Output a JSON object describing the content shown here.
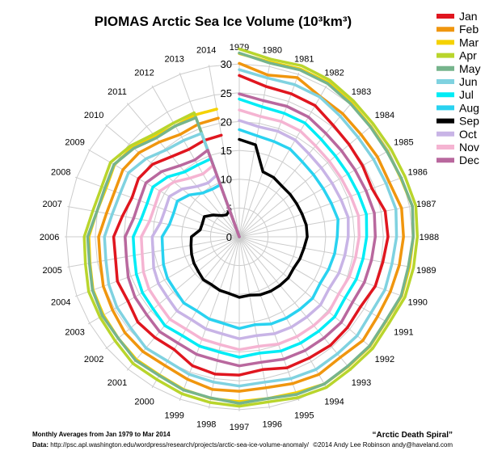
{
  "chart_data": {
    "type": "line",
    "subtype": "polar-spiral",
    "title": "PIOMAS Arctic Sea Ice Volume (10³km³)",
    "radial_axis": {
      "min": 0,
      "max": 30,
      "ticks": [
        "0",
        "5",
        "10",
        "15",
        "20",
        "25",
        "30"
      ]
    },
    "angular_axis": {
      "labels": [
        "1979",
        "1980",
        "1981",
        "1982",
        "1983",
        "1984",
        "1985",
        "1986",
        "1987",
        "1988",
        "1989",
        "1990",
        "1991",
        "1992",
        "1993",
        "1994",
        "1995",
        "1996",
        "1997",
        "1998",
        "1999",
        "2000",
        "2001",
        "2002",
        "2003",
        "2004",
        "2005",
        "2006",
        "2007",
        "2008",
        "2009",
        "2010",
        "2011",
        "2012",
        "2013",
        "2014"
      ]
    },
    "legend_placement": "top-right",
    "series": [
      {
        "name": "Jan",
        "color": "#e0161f",
        "values": [
          28.0,
          26.5,
          26.4,
          26.3,
          25.3,
          24.9,
          24.7,
          24.5,
          25.7,
          25.8,
          25.3,
          25.1,
          24.3,
          24.5,
          24.6,
          24.3,
          24.2,
          23.4,
          24.0,
          24.2,
          23.8,
          22.6,
          22.8,
          23.0,
          22.3,
          22.5,
          21.8,
          21.8,
          20.6,
          19.8,
          20.2,
          19.6,
          18.2,
          17.5,
          17.8,
          17.9
        ]
      },
      {
        "name": "Feb",
        "color": "#f0960e",
        "values": [
          30.1,
          28.5,
          29.4,
          28.1,
          27.9,
          27.6,
          27.7,
          27.7,
          28.6,
          28.5,
          28.2,
          27.9,
          27.7,
          28.0,
          27.3,
          27.6,
          27.1,
          26.6,
          26.8,
          26.9,
          26.3,
          25.8,
          26.0,
          25.9,
          25.4,
          25.1,
          24.5,
          24.4,
          23.4,
          23.0,
          23.3,
          22.7,
          21.5,
          20.5,
          20.8,
          20.9
        ]
      },
      {
        "name": "Mar",
        "color": "#f5d200",
        "values": [
          31.8,
          30.8,
          31.0,
          30.9,
          30.3,
          29.8,
          29.7,
          29.8,
          30.5,
          30.2,
          30.0,
          30.0,
          29.4,
          29.6,
          29.4,
          29.5,
          28.8,
          28.5,
          28.6,
          28.5,
          28.2,
          27.7,
          27.8,
          27.4,
          27.2,
          27.0,
          26.3,
          26.1,
          25.1,
          24.6,
          25.0,
          24.2,
          22.8,
          22.2,
          22.5,
          22.5
        ]
      },
      {
        "name": "Apr",
        "color": "#b9d52c",
        "values": [
          32.6,
          31.3,
          31.6,
          31.4,
          30.8,
          30.4,
          30.4,
          30.6,
          31.1,
          30.9,
          30.7,
          30.6,
          30.0,
          30.2,
          30.0,
          30.2,
          29.7,
          29.1,
          29.4,
          29.2,
          29.0,
          28.6,
          28.7,
          28.1,
          27.9,
          27.8,
          27.1,
          26.9,
          25.8,
          25.4,
          25.8,
          24.6,
          23.2,
          22.8,
          22.9,
          0
        ]
      },
      {
        "name": "May",
        "color": "#76b48c",
        "values": [
          31.9,
          30.6,
          30.8,
          30.7,
          30.1,
          29.7,
          29.6,
          29.9,
          30.5,
          30.2,
          29.8,
          29.9,
          29.3,
          29.5,
          29.3,
          29.5,
          29.1,
          28.5,
          28.9,
          28.4,
          28.3,
          27.8,
          28.0,
          27.4,
          27.4,
          27.1,
          26.4,
          26.3,
          25.1,
          24.8,
          25.1,
          23.9,
          22.4,
          22.2,
          22.0,
          0
        ]
      },
      {
        "name": "Jun",
        "color": "#7fd2e0",
        "values": [
          29.0,
          28.0,
          28.1,
          28.0,
          27.3,
          26.9,
          26.9,
          27.1,
          27.6,
          27.3,
          26.9,
          26.9,
          26.4,
          26.7,
          26.5,
          26.6,
          26.2,
          25.6,
          25.9,
          25.6,
          25.4,
          24.9,
          25.2,
          24.6,
          24.5,
          24.1,
          23.5,
          23.4,
          22.4,
          22.0,
          22.2,
          21.1,
          19.7,
          19.3,
          19.1,
          0
        ]
      },
      {
        "name": "Jul",
        "color": "#00ecf5",
        "values": [
          23.9,
          22.9,
          22.8,
          22.8,
          22.1,
          21.8,
          21.8,
          22.0,
          22.4,
          22.1,
          21.8,
          21.6,
          21.2,
          21.6,
          21.4,
          21.3,
          21.1,
          20.5,
          20.9,
          20.3,
          20.2,
          19.8,
          20.1,
          19.5,
          19.4,
          19.0,
          18.5,
          18.4,
          17.3,
          17.0,
          17.3,
          16.2,
          14.7,
          14.4,
          14.4,
          0
        ]
      },
      {
        "name": "Aug",
        "color": "#29d2f0",
        "values": [
          18.6,
          17.8,
          17.6,
          17.6,
          17.0,
          16.8,
          16.8,
          17.0,
          17.4,
          17.0,
          16.8,
          16.5,
          16.2,
          16.6,
          16.4,
          16.3,
          16.1,
          15.5,
          15.9,
          15.3,
          15.2,
          14.8,
          15.0,
          14.5,
          14.4,
          14.0,
          13.5,
          13.4,
          12.3,
          12.1,
          12.4,
          11.3,
          9.9,
          9.5,
          9.6,
          0
        ]
      },
      {
        "name": "Sep",
        "color": "#000000",
        "values": [
          16.9,
          16.2,
          12.0,
          11.9,
          11.5,
          11.5,
          11.5,
          11.6,
          11.8,
          11.8,
          11.4,
          11.2,
          10.9,
          11.1,
          11.0,
          10.9,
          10.7,
          10.3,
          10.5,
          10.0,
          9.9,
          9.6,
          9.7,
          9.3,
          9.1,
          8.8,
          8.5,
          8.3,
          6.9,
          6.8,
          7.0,
          5.9,
          4.8,
          4.4,
          4.9,
          0
        ]
      },
      {
        "name": "Oct",
        "color": "#c8b4e6",
        "values": [
          20.2,
          19.4,
          19.5,
          19.4,
          18.8,
          18.6,
          18.6,
          18.8,
          19.2,
          18.9,
          18.6,
          18.4,
          18.0,
          18.4,
          18.2,
          18.1,
          17.9,
          17.4,
          17.7,
          17.1,
          17.0,
          16.6,
          16.8,
          16.3,
          16.2,
          15.8,
          15.2,
          15.1,
          13.9,
          13.7,
          14.0,
          12.9,
          11.4,
          10.8,
          11.4,
          0
        ]
      },
      {
        "name": "Nov",
        "color": "#f5b4d2",
        "values": [
          22.0,
          21.2,
          21.3,
          21.2,
          20.6,
          20.4,
          20.4,
          20.6,
          21.0,
          20.8,
          20.5,
          20.3,
          19.9,
          20.3,
          20.1,
          20.0,
          19.8,
          19.3,
          19.6,
          19.0,
          18.9,
          18.5,
          18.7,
          18.2,
          18.1,
          17.7,
          17.1,
          17.0,
          15.8,
          15.6,
          15.9,
          14.8,
          13.3,
          12.6,
          13.2,
          0
        ]
      },
      {
        "name": "Dec",
        "color": "#b9689e",
        "values": [
          24.8,
          24.0,
          24.1,
          24.0,
          23.4,
          23.2,
          23.2,
          23.4,
          23.8,
          23.6,
          23.3,
          23.1,
          22.7,
          23.1,
          22.9,
          22.8,
          22.6,
          22.1,
          22.4,
          21.8,
          21.7,
          21.3,
          21.5,
          21.0,
          20.9,
          20.5,
          19.9,
          19.8,
          18.6,
          18.4,
          18.7,
          17.6,
          16.1,
          15.4,
          16.0,
          0
        ]
      }
    ]
  },
  "footer": {
    "averages": "Monthly Averages from Jan 1979 to Mar 2014",
    "data_prefix": "Data:",
    "data_url": "http://psc.apl.washington.edu/wordpress/research/projects/arctic-sea-ice-volume-anomaly/",
    "spiral_name": "“Arctic Death Spiral”",
    "copyright": "©2014 Andy Lee Robinson andy@haveland.com"
  }
}
